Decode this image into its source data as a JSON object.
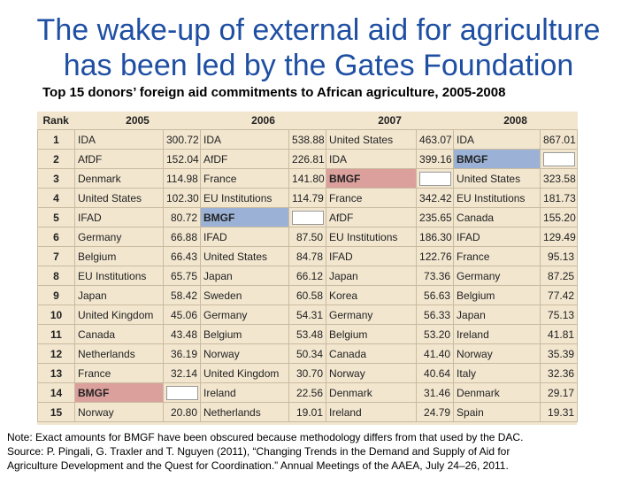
{
  "title_line1": "The wake-up of external aid for agriculture",
  "title_line2": "has been led by the Gates Foundation",
  "subtitle": "Top 15 donors’ foreign aid commitments to African agriculture, 2005-2008",
  "header": {
    "rank": "Rank",
    "years": [
      "2005",
      "2006",
      "2007",
      "2008"
    ]
  },
  "rows": [
    {
      "rank": "1",
      "cells": [
        [
          "IDA",
          "300.72"
        ],
        [
          "IDA",
          "538.88"
        ],
        [
          "United States",
          "463.07"
        ],
        [
          "IDA",
          "867.01"
        ]
      ]
    },
    {
      "rank": "2",
      "cells": [
        [
          "AfDF",
          "152.04"
        ],
        [
          "AfDF",
          "226.81"
        ],
        [
          "IDA",
          "399.16"
        ],
        [
          "BMGF",
          ""
        ]
      ]
    },
    {
      "rank": "3",
      "cells": [
        [
          "Denmark",
          "114.98"
        ],
        [
          "France",
          "141.80"
        ],
        [
          "BMGF",
          ""
        ],
        [
          "United States",
          "323.58"
        ]
      ]
    },
    {
      "rank": "4",
      "cells": [
        [
          "United States",
          "102.30"
        ],
        [
          "EU Institutions",
          "114.79"
        ],
        [
          "France",
          "342.42"
        ],
        [
          "EU Institutions",
          "181.73"
        ]
      ]
    },
    {
      "rank": "5",
      "cells": [
        [
          "IFAD",
          "80.72"
        ],
        [
          "BMGF",
          ""
        ],
        [
          "AfDF",
          "235.65"
        ],
        [
          "Canada",
          "155.20"
        ]
      ]
    },
    {
      "rank": "6",
      "cells": [
        [
          "Germany",
          "66.88"
        ],
        [
          "IFAD",
          "87.50"
        ],
        [
          "EU Institutions",
          "186.30"
        ],
        [
          "IFAD",
          "129.49"
        ]
      ]
    },
    {
      "rank": "7",
      "cells": [
        [
          "Belgium",
          "66.43"
        ],
        [
          "United States",
          "84.78"
        ],
        [
          "IFAD",
          "122.76"
        ],
        [
          "France",
          "95.13"
        ]
      ]
    },
    {
      "rank": "8",
      "cells": [
        [
          "EU Institutions",
          "65.75"
        ],
        [
          "Japan",
          "66.12"
        ],
        [
          "Japan",
          "73.36"
        ],
        [
          "Germany",
          "87.25"
        ]
      ]
    },
    {
      "rank": "9",
      "cells": [
        [
          "Japan",
          "58.42"
        ],
        [
          "Sweden",
          "60.58"
        ],
        [
          "Korea",
          "56.63"
        ],
        [
          "Belgium",
          "77.42"
        ]
      ]
    },
    {
      "rank": "10",
      "cells": [
        [
          "United Kingdom",
          "45.06"
        ],
        [
          "Germany",
          "54.31"
        ],
        [
          "Germany",
          "56.33"
        ],
        [
          "Japan",
          "75.13"
        ]
      ]
    },
    {
      "rank": "11",
      "cells": [
        [
          "Canada",
          "43.48"
        ],
        [
          "Belgium",
          "53.48"
        ],
        [
          "Belgium",
          "53.20"
        ],
        [
          "Ireland",
          "41.81"
        ]
      ]
    },
    {
      "rank": "12",
      "cells": [
        [
          "Netherlands",
          "36.19"
        ],
        [
          "Norway",
          "50.34"
        ],
        [
          "Canada",
          "41.40"
        ],
        [
          "Norway",
          "35.39"
        ]
      ]
    },
    {
      "rank": "13",
      "cells": [
        [
          "France",
          "32.14"
        ],
        [
          "United Kingdom",
          "30.70"
        ],
        [
          "Norway",
          "40.64"
        ],
        [
          "Italy",
          "32.36"
        ]
      ]
    },
    {
      "rank": "14",
      "cells": [
        [
          "BMGF",
          ""
        ],
        [
          "Ireland",
          "22.56"
        ],
        [
          "Denmark",
          "31.46"
        ],
        [
          "Denmark",
          "29.17"
        ]
      ]
    },
    {
      "rank": "15",
      "cells": [
        [
          "Norway",
          "20.80"
        ],
        [
          "Netherlands",
          "19.01"
        ],
        [
          "Ireland",
          "24.79"
        ],
        [
          "Spain",
          "19.31"
        ]
      ]
    }
  ],
  "colors": {
    "title": "#1f4fa3",
    "table_bg": "#f2e6cf",
    "bmgf_red": "#dba09c",
    "bmgf_blue": "#9bb2d6"
  },
  "note_line1": "Note: Exact amounts for BMGF have been obscured because methodology differs  from that used by the DAC.",
  "note_line2": "Source:  P. Pingali, G. Traxler and T. Nguyen (2011), “Changing Trends in the Demand and Supply of Aid for",
  "note_line3": "Agriculture Development  and the Quest for Coordination.” Annual Meetings of the AAEA, July 24–26, 2011."
}
